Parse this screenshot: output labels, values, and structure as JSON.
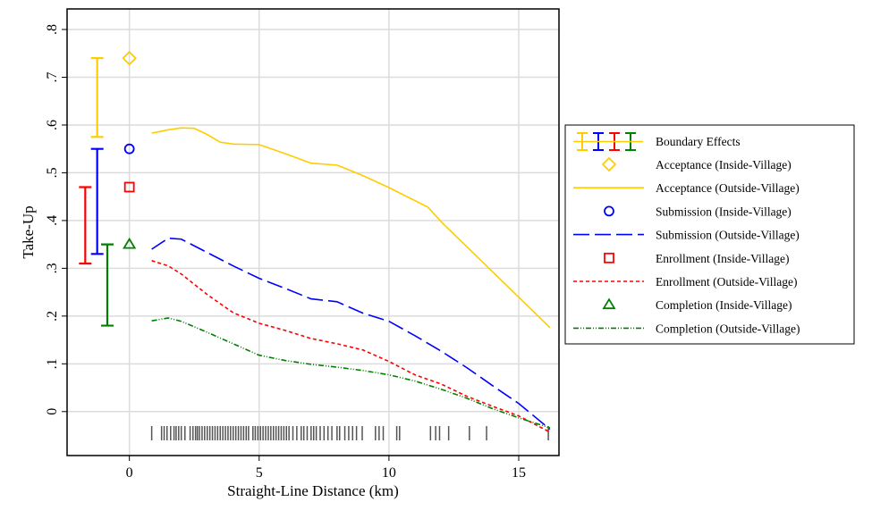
{
  "chart_data": {
    "type": "line",
    "xlabel": "Straight-Line Distance (km)",
    "ylabel": "Take-Up",
    "xlim": [
      -2.4,
      16.55
    ],
    "ylim": [
      -0.092,
      0.843
    ],
    "x_ticks": [
      0,
      5,
      10,
      15
    ],
    "x_tick_labels": [
      "0",
      "5",
      "10",
      "15"
    ],
    "y_ticks": [
      0,
      0.1,
      0.2,
      0.3,
      0.4,
      0.5,
      0.6,
      0.7,
      0.8
    ],
    "y_tick_labels": [
      "0",
      ".1",
      ".2",
      ".3",
      ".4",
      ".5",
      ".6",
      ".7",
      ".8"
    ],
    "grid": true,
    "legend_position": "right",
    "legend": {
      "boundary": "Boundary Effects",
      "items": [
        {
          "label": "Acceptance (Inside-Village)",
          "kind": "diamond",
          "color": "#ffcc00"
        },
        {
          "label": "Acceptance (Outside-Village)",
          "kind": "solid",
          "color": "#ffcc00"
        },
        {
          "label": "Submission (Inside-Village)",
          "kind": "circle",
          "color": "#0000ff"
        },
        {
          "label": "Submission (Outside-Village)",
          "kind": "longdash",
          "color": "#0000ff"
        },
        {
          "label": "Enrollment (Inside-Village)",
          "kind": "square",
          "color": "#ff0000"
        },
        {
          "label": "Enrollment (Outside-Village)",
          "kind": "shortdash",
          "color": "#ff0000"
        },
        {
          "label": "Completion (Inside-Village)",
          "kind": "triangle",
          "color": "#008000"
        },
        {
          "label": "Completion (Outside-Village)",
          "kind": "dashdot",
          "color": "#008000"
        }
      ]
    },
    "boundary_effects": [
      {
        "series": "Acceptance",
        "x": -1.24,
        "low": 0.575,
        "high": 0.74,
        "color": "#ffcc00"
      },
      {
        "series": "Submission",
        "x": -1.24,
        "low": 0.33,
        "high": 0.55,
        "color": "#0000ff"
      },
      {
        "series": "Enrollment",
        "x": -1.7,
        "low": 0.31,
        "high": 0.47,
        "color": "#ff0000"
      },
      {
        "series": "Completion",
        "x": -0.85,
        "low": 0.18,
        "high": 0.35,
        "color": "#008000"
      }
    ],
    "inside_village": [
      {
        "series": "Acceptance",
        "x": 0,
        "y": 0.74,
        "marker": "diamond",
        "color": "#ffcc00"
      },
      {
        "series": "Submission",
        "x": 0,
        "y": 0.55,
        "marker": "circle",
        "color": "#0000ff"
      },
      {
        "series": "Enrollment",
        "x": 0,
        "y": 0.47,
        "marker": "square",
        "color": "#ff0000"
      },
      {
        "series": "Completion",
        "x": 0,
        "y": 0.35,
        "marker": "triangle",
        "color": "#008000"
      }
    ],
    "series": [
      {
        "name": "Acceptance (Outside-Village)",
        "color": "#ffcc00",
        "dash": "",
        "x": [
          0.86,
          1.5,
          2,
          2.5,
          3,
          3.5,
          4,
          5,
          6,
          7,
          8,
          9,
          10,
          11.5,
          12,
          16.2
        ],
        "y": [
          0.583,
          0.59,
          0.594,
          0.593,
          0.58,
          0.564,
          0.56,
          0.559,
          0.54,
          0.52,
          0.516,
          0.494,
          0.469,
          0.428,
          0.398,
          0.176
        ]
      },
      {
        "name": "Submission (Outside-Village)",
        "color": "#0000ff",
        "dash": "18 6",
        "x": [
          0.86,
          1.5,
          2,
          3,
          4,
          5,
          6,
          7,
          8,
          9,
          10,
          11,
          12,
          13,
          14,
          15,
          16.2
        ],
        "y": [
          0.34,
          0.363,
          0.361,
          0.333,
          0.305,
          0.279,
          0.258,
          0.236,
          0.23,
          0.206,
          0.189,
          0.159,
          0.127,
          0.092,
          0.054,
          0.017,
          -0.037
        ]
      },
      {
        "name": "Enrollment (Outside-Village)",
        "color": "#ff0000",
        "dash": "4 3",
        "x": [
          0.86,
          1.5,
          2,
          3,
          4,
          5,
          6,
          7,
          8,
          9,
          10,
          11,
          12,
          13,
          14,
          15,
          16.2
        ],
        "y": [
          0.316,
          0.305,
          0.288,
          0.245,
          0.207,
          0.185,
          0.17,
          0.153,
          0.142,
          0.129,
          0.105,
          0.077,
          0.058,
          0.032,
          0.011,
          -0.009,
          -0.043
        ]
      },
      {
        "name": "Completion (Outside-Village)",
        "color": "#008000",
        "dash": "6 2 1 2 1 2",
        "x": [
          0.86,
          1.5,
          2,
          3,
          4,
          5,
          6,
          7,
          8,
          9,
          10,
          11,
          12,
          13,
          14,
          15,
          16.2
        ],
        "y": [
          0.19,
          0.196,
          0.189,
          0.166,
          0.142,
          0.118,
          0.107,
          0.099,
          0.093,
          0.086,
          0.077,
          0.064,
          0.047,
          0.028,
          0.006,
          -0.013,
          -0.034
        ]
      }
    ],
    "rug_x": [
      0.86,
      1.24,
      1.34,
      1.45,
      1.59,
      1.72,
      1.8,
      1.9,
      2.0,
      2.14,
      2.34,
      2.45,
      2.55,
      2.62,
      2.7,
      2.8,
      2.9,
      3.0,
      3.1,
      3.2,
      3.3,
      3.4,
      3.5,
      3.6,
      3.7,
      3.8,
      3.9,
      4.0,
      4.1,
      4.2,
      4.3,
      4.4,
      4.5,
      4.59,
      4.76,
      4.85,
      4.95,
      5.05,
      5.15,
      5.25,
      5.35,
      5.45,
      5.55,
      5.65,
      5.75,
      5.85,
      5.95,
      6.05,
      6.15,
      6.3,
      6.45,
      6.62,
      6.72,
      6.85,
      7.0,
      7.1,
      7.2,
      7.35,
      7.5,
      7.65,
      7.8,
      8.0,
      8.1,
      8.3,
      8.45,
      8.6,
      8.75,
      8.97,
      9.48,
      9.62,
      9.78,
      10.3,
      10.41,
      11.6,
      11.8,
      11.95,
      12.3,
      13.1,
      13.76,
      16.14
    ]
  }
}
